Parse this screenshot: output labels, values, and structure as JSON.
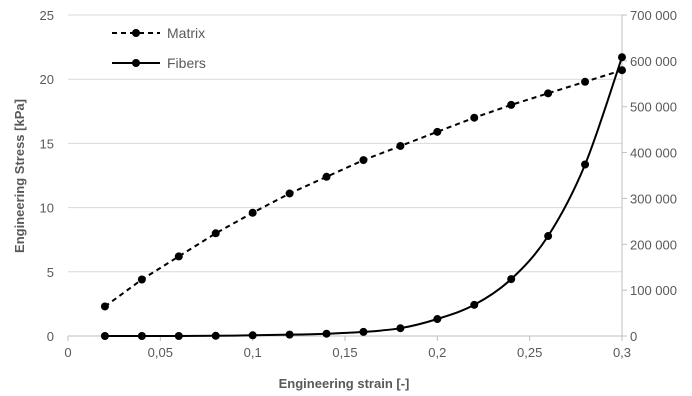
{
  "chart_data": {
    "type": "line",
    "title": "",
    "xlabel": "Engineering strain [-]",
    "ylabel_left": "Engineering Stress [kPa]",
    "ylabel_right": "",
    "xlim": [
      0,
      0.3
    ],
    "ylim_left": [
      0,
      25
    ],
    "ylim_right": [
      0,
      700000
    ],
    "x_ticks": [
      0,
      0.05,
      0.1,
      0.15,
      0.2,
      0.25,
      0.3
    ],
    "x_tick_labels": [
      "0",
      "0,05",
      "0,1",
      "0,15",
      "0,2",
      "0,25",
      "0,3"
    ],
    "y_left_ticks": [
      0,
      5,
      10,
      15,
      20,
      25
    ],
    "y_left_tick_labels": [
      "0",
      "5",
      "10",
      "15",
      "20",
      "25"
    ],
    "y_right_ticks": [
      0,
      100000,
      200000,
      300000,
      400000,
      500000,
      600000,
      700000
    ],
    "y_right_tick_labels": [
      "0",
      "100 000",
      "200 000",
      "300 000",
      "400 000",
      "500 000",
      "600 000",
      "700 000"
    ],
    "grid": "horizontal",
    "legend_position": "top-left",
    "series": [
      {
        "name": "Matrix",
        "axis": "left",
        "line_style": "dashed",
        "color": "#000000",
        "x": [
          0.02,
          0.04,
          0.06,
          0.08,
          0.1,
          0.12,
          0.14,
          0.16,
          0.18,
          0.2,
          0.22,
          0.24,
          0.26,
          0.28,
          0.3
        ],
        "y": [
          2.3,
          4.4,
          6.2,
          8.0,
          9.6,
          11.1,
          12.4,
          13.7,
          14.8,
          15.9,
          17.0,
          18.0,
          18.9,
          19.8,
          20.7
        ]
      },
      {
        "name": "Fibers",
        "axis": "right",
        "line_style": "solid",
        "color": "#000000",
        "x": [
          0.02,
          0.04,
          0.06,
          0.08,
          0.1,
          0.12,
          0.14,
          0.16,
          0.18,
          0.2,
          0.22,
          0.24,
          0.26,
          0.28,
          0.3
        ],
        "y": [
          0,
          0,
          0,
          500,
          1500,
          3000,
          5000,
          9000,
          17000,
          37000,
          68000,
          124000,
          218000,
          374000,
          608000
        ]
      }
    ]
  }
}
